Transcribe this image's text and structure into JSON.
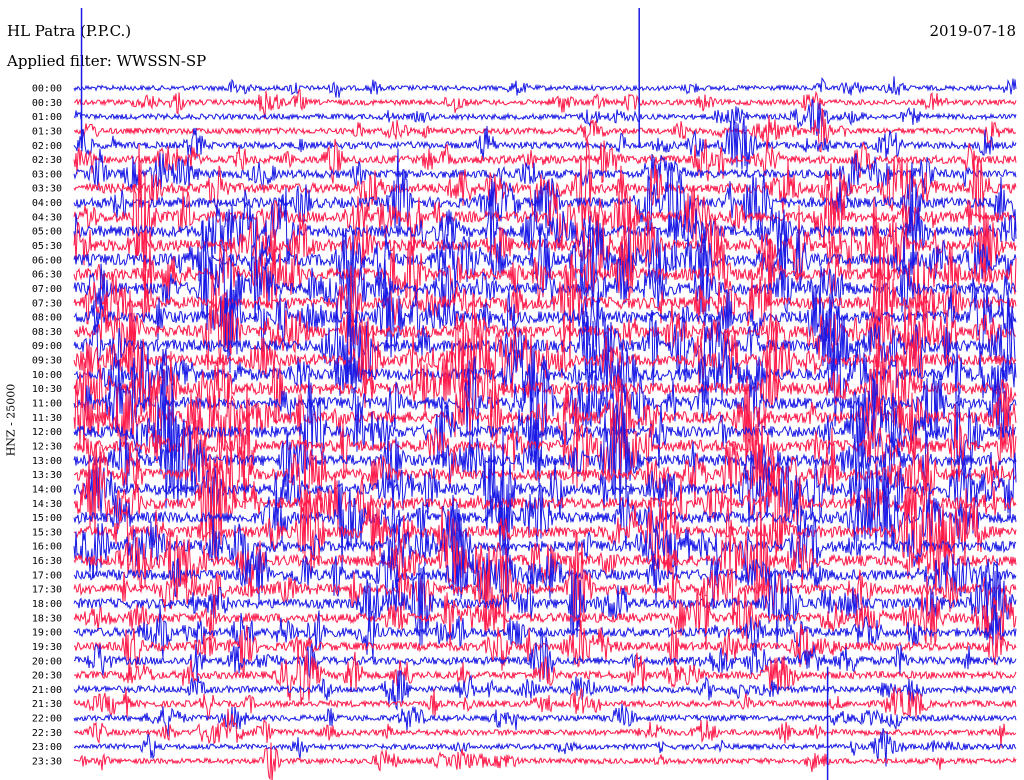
{
  "header": {
    "station": "HL Patra (P.P.C.)",
    "date": "2019-07-18",
    "filter_label": "Applied filter: WWSSN-SP"
  },
  "axis": {
    "ylabel": "HNZ - 25000"
  },
  "chart_data": {
    "type": "line",
    "title": "HL Patra (P.P.C.)",
    "ylabel": "HNZ - 25000",
    "row_labels": [
      "00:00",
      "00:30",
      "01:00",
      "01:30",
      "02:00",
      "02:30",
      "03:00",
      "03:30",
      "04:00",
      "04:30",
      "05:00",
      "05:30",
      "06:00",
      "06:30",
      "07:00",
      "07:30",
      "08:00",
      "08:30",
      "09:00",
      "09:30",
      "10:00",
      "10:30",
      "11:00",
      "11:30",
      "12:00",
      "12:30",
      "13:00",
      "13:30",
      "14:00",
      "14:30",
      "15:00",
      "15:30",
      "16:00",
      "16:30",
      "17:00",
      "17:30",
      "18:00",
      "18:30",
      "19:00",
      "19:30",
      "20:00",
      "20:30",
      "21:00",
      "21:30",
      "22:00",
      "22:30",
      "23:00",
      "23:30"
    ],
    "series_colors": [
      "#1a1ae6",
      "#ff1a4a"
    ],
    "color_pattern": "alternating",
    "row_activity": [
      0.25,
      0.3,
      0.3,
      0.35,
      0.45,
      0.55,
      0.6,
      0.75,
      0.8,
      0.85,
      0.9,
      0.95,
      0.95,
      0.95,
      0.95,
      0.95,
      0.95,
      0.95,
      0.95,
      0.95,
      0.95,
      0.95,
      0.95,
      0.95,
      0.95,
      0.95,
      0.9,
      0.9,
      0.9,
      0.9,
      0.9,
      0.9,
      0.85,
      0.85,
      0.8,
      0.8,
      0.75,
      0.7,
      0.65,
      0.6,
      0.55,
      0.5,
      0.45,
      0.4,
      0.35,
      0.35,
      0.3,
      0.3
    ],
    "notable_events": [
      {
        "row": "00:00",
        "time_fraction": 0.008,
        "amplitude": "large"
      },
      {
        "row": "00:00",
        "time_fraction": 0.6,
        "amplitude": "large"
      },
      {
        "row": "23:00",
        "time_fraction": 0.8,
        "amplitude": "large"
      }
    ]
  }
}
